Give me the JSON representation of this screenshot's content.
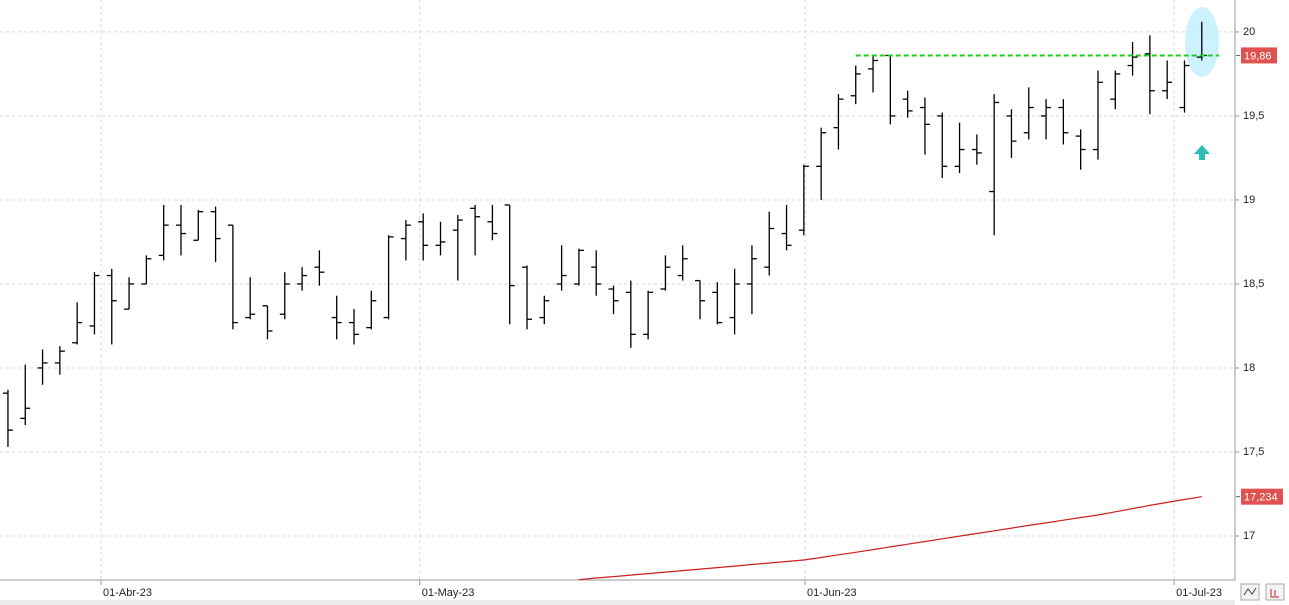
{
  "chart_data": {
    "type": "ohlc",
    "x": [
      0,
      1,
      2,
      3,
      4,
      5,
      6,
      7,
      8,
      9,
      10,
      11,
      12,
      13,
      14,
      15,
      16,
      17,
      18,
      19,
      20,
      21,
      22,
      23,
      24,
      25,
      26,
      27,
      28,
      29,
      30,
      31,
      32,
      33,
      34,
      35,
      36,
      37,
      38,
      39,
      40,
      41,
      42,
      43,
      44,
      45,
      46,
      47,
      48,
      49,
      50,
      51,
      52,
      53,
      54,
      55,
      56,
      57,
      58,
      59,
      60,
      61,
      62,
      63,
      64,
      65,
      66,
      67,
      68,
      69
    ],
    "open": [
      17.85,
      17.7,
      18.0,
      18.03,
      18.15,
      18.25,
      18.55,
      18.35,
      18.5,
      18.67,
      18.85,
      18.76,
      18.93,
      18.85,
      18.3,
      18.37,
      18.32,
      18.5,
      18.6,
      18.3,
      18.27,
      18.24,
      18.3,
      18.77,
      18.87,
      18.73,
      18.82,
      18.95,
      18.87,
      18.97,
      18.6,
      18.3,
      18.5,
      18.5,
      18.6,
      18.47,
      18.45,
      18.2,
      18.47,
      18.55,
      18.52,
      18.45,
      18.3,
      18.5,
      18.6,
      18.8,
      18.82,
      19.2,
      19.43,
      19.62,
      19.78,
      19.86,
      19.6,
      19.55,
      19.5,
      19.2,
      19.3,
      19.05,
      19.5,
      19.4,
      19.5,
      19.55,
      19.38,
      19.3,
      19.6,
      19.8,
      19.87,
      19.65,
      19.55,
      19.85
    ],
    "high": [
      17.87,
      18.02,
      18.11,
      18.13,
      18.39,
      18.57,
      18.59,
      18.54,
      18.67,
      18.97,
      18.97,
      18.94,
      18.96,
      18.85,
      18.54,
      18.37,
      18.57,
      18.6,
      18.7,
      18.43,
      18.35,
      18.46,
      18.79,
      18.88,
      18.92,
      18.87,
      18.91,
      18.97,
      18.97,
      18.97,
      18.61,
      18.43,
      18.73,
      18.71,
      18.7,
      18.49,
      18.52,
      18.46,
      18.67,
      18.73,
      18.52,
      18.51,
      18.59,
      18.73,
      18.93,
      18.97,
      19.21,
      19.43,
      19.63,
      19.8,
      19.86,
      19.86,
      19.65,
      19.61,
      19.52,
      19.46,
      19.39,
      19.63,
      19.54,
      19.67,
      19.6,
      19.6,
      19.42,
      19.77,
      19.77,
      19.94,
      19.98,
      19.83,
      19.83,
      20.06
    ],
    "low": [
      17.53,
      17.66,
      17.9,
      17.96,
      18.14,
      18.2,
      18.14,
      18.35,
      18.5,
      18.64,
      18.67,
      18.76,
      18.63,
      18.23,
      18.29,
      18.17,
      18.29,
      18.46,
      18.49,
      18.17,
      18.14,
      18.23,
      18.29,
      18.64,
      18.64,
      18.67,
      18.52,
      18.67,
      18.76,
      18.26,
      18.23,
      18.26,
      18.46,
      18.49,
      18.43,
      18.32,
      18.12,
      18.17,
      18.46,
      18.52,
      18.29,
      18.26,
      18.2,
      18.32,
      18.55,
      18.7,
      18.79,
      19.0,
      19.3,
      19.57,
      19.64,
      19.45,
      19.49,
      19.27,
      19.13,
      19.16,
      19.21,
      18.79,
      19.25,
      19.36,
      19.36,
      19.33,
      19.18,
      19.24,
      19.54,
      19.74,
      19.51,
      19.6,
      19.52,
      19.83
    ],
    "close": [
      17.63,
      17.76,
      18.03,
      18.1,
      18.27,
      18.55,
      18.4,
      18.5,
      18.65,
      18.85,
      18.8,
      18.93,
      18.77,
      18.27,
      18.32,
      18.22,
      18.5,
      18.55,
      18.57,
      18.27,
      18.2,
      18.4,
      18.78,
      18.85,
      18.73,
      18.75,
      18.88,
      18.9,
      18.8,
      18.49,
      18.29,
      18.4,
      18.55,
      18.7,
      18.5,
      18.4,
      18.2,
      18.45,
      18.6,
      18.65,
      18.4,
      18.27,
      18.5,
      18.65,
      18.83,
      18.73,
      19.2,
      19.4,
      19.6,
      19.75,
      19.83,
      19.5,
      19.53,
      19.45,
      19.2,
      19.3,
      19.28,
      19.58,
      19.35,
      19.55,
      19.55,
      19.4,
      19.3,
      19.7,
      19.75,
      19.85,
      19.65,
      19.7,
      19.8,
      19.86
    ],
    "color": "#000000",
    "ma": {
      "color": "#cc2020",
      "values": [
        null,
        null,
        null,
        null,
        null,
        null,
        null,
        null,
        null,
        null,
        null,
        null,
        null,
        null,
        null,
        null,
        null,
        null,
        null,
        null,
        null,
        null,
        null,
        null,
        null,
        null,
        null,
        null,
        null,
        null,
        null,
        null,
        null,
        16.74,
        16.75,
        16.758,
        16.767,
        16.776,
        16.785,
        16.794,
        16.803,
        16.812,
        16.821,
        16.83,
        16.839,
        16.848,
        16.857,
        16.872,
        16.888,
        16.903,
        16.919,
        16.935,
        16.951,
        16.967,
        16.983,
        16.999,
        17.015,
        17.031,
        17.047,
        17.063,
        17.078,
        17.094,
        17.11,
        17.125,
        17.144,
        17.163,
        17.182,
        17.2,
        17.217,
        17.234
      ]
    },
    "last_price": {
      "value": 19.86,
      "label": "19,86"
    },
    "ma_last": {
      "value": 17.234,
      "label": "17,234"
    },
    "hline": {
      "value": 19.86,
      "x": [
        49,
        70
      ],
      "color": "#22cc22"
    },
    "xlim": [
      -0.46,
      70.92
    ],
    "xticks": [
      {
        "value": 5.38,
        "label": "01-Abr-23"
      },
      {
        "value": 23.8,
        "label": "01-May-23"
      },
      {
        "value": 46.07,
        "label": "01-Jun-23"
      },
      {
        "value": 67.4,
        "label": "01-Jul-23"
      }
    ],
    "ylim": [
      16.738,
      20.19
    ],
    "yticks": [
      20,
      {
        "value": 19.5,
        "label": "19,5"
      },
      19,
      {
        "value": 18.5,
        "label": "18,5"
      },
      18,
      {
        "value": 17.5,
        "label": "17,5"
      },
      17
    ],
    "grid": true
  }
}
